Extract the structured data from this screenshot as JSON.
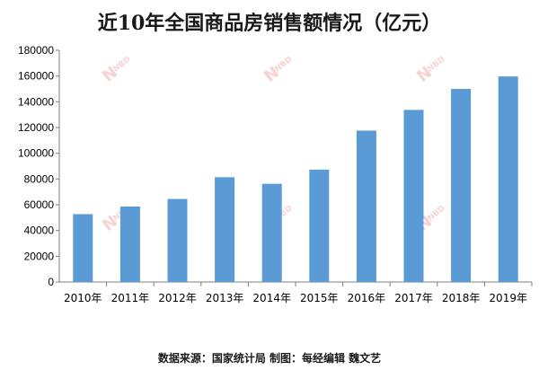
{
  "chart_data": {
    "type": "bar",
    "title": "近10年全国商品房销售额情况（亿元）",
    "categories": [
      "2010年",
      "2011年",
      "2012年",
      "2013年",
      "2014年",
      "2015年",
      "2016年",
      "2017年",
      "2018年",
      "2019年"
    ],
    "values": [
      52700,
      58600,
      64500,
      81400,
      76300,
      87300,
      117600,
      133700,
      150000,
      159700
    ],
    "ylim": [
      0,
      180000
    ],
    "yticks": [
      0,
      20000,
      40000,
      60000,
      80000,
      100000,
      120000,
      140000,
      160000,
      180000
    ],
    "xlabel": "",
    "ylabel": "",
    "grid": false,
    "legend": "none",
    "bar_color": "#5b9bd5"
  },
  "footer": {
    "source": "数据来源：国家统计局  制图：每经编辑 魏文艺"
  },
  "watermark": {
    "letter": "N",
    "brand": "NBD",
    "color": "#e06666"
  }
}
